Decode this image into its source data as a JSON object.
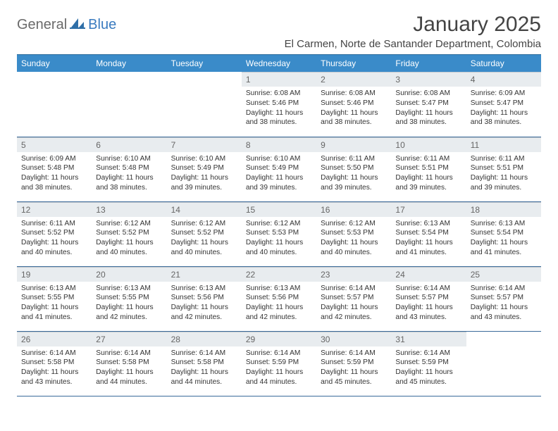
{
  "brand": {
    "part1": "General",
    "part2": "Blue"
  },
  "title": "January 2025",
  "location": "El Carmen, Norte de Santander Department, Colombia",
  "colors": {
    "header_bg": "#3a8bc9",
    "header_text": "#ffffff",
    "daynum_bg": "#e8ecef",
    "daynum_text": "#666666",
    "row_border": "#3a6a9a",
    "body_text": "#333333",
    "logo_gray": "#6a6a6a",
    "logo_blue": "#3a7bbf"
  },
  "day_headers": [
    "Sunday",
    "Monday",
    "Tuesday",
    "Wednesday",
    "Thursday",
    "Friday",
    "Saturday"
  ],
  "weeks": [
    [
      null,
      null,
      null,
      {
        "n": "1",
        "sr": "6:08 AM",
        "ss": "5:46 PM",
        "dl": "11 hours and 38 minutes."
      },
      {
        "n": "2",
        "sr": "6:08 AM",
        "ss": "5:46 PM",
        "dl": "11 hours and 38 minutes."
      },
      {
        "n": "3",
        "sr": "6:08 AM",
        "ss": "5:47 PM",
        "dl": "11 hours and 38 minutes."
      },
      {
        "n": "4",
        "sr": "6:09 AM",
        "ss": "5:47 PM",
        "dl": "11 hours and 38 minutes."
      }
    ],
    [
      {
        "n": "5",
        "sr": "6:09 AM",
        "ss": "5:48 PM",
        "dl": "11 hours and 38 minutes."
      },
      {
        "n": "6",
        "sr": "6:10 AM",
        "ss": "5:48 PM",
        "dl": "11 hours and 38 minutes."
      },
      {
        "n": "7",
        "sr": "6:10 AM",
        "ss": "5:49 PM",
        "dl": "11 hours and 39 minutes."
      },
      {
        "n": "8",
        "sr": "6:10 AM",
        "ss": "5:49 PM",
        "dl": "11 hours and 39 minutes."
      },
      {
        "n": "9",
        "sr": "6:11 AM",
        "ss": "5:50 PM",
        "dl": "11 hours and 39 minutes."
      },
      {
        "n": "10",
        "sr": "6:11 AM",
        "ss": "5:51 PM",
        "dl": "11 hours and 39 minutes."
      },
      {
        "n": "11",
        "sr": "6:11 AM",
        "ss": "5:51 PM",
        "dl": "11 hours and 39 minutes."
      }
    ],
    [
      {
        "n": "12",
        "sr": "6:11 AM",
        "ss": "5:52 PM",
        "dl": "11 hours and 40 minutes."
      },
      {
        "n": "13",
        "sr": "6:12 AM",
        "ss": "5:52 PM",
        "dl": "11 hours and 40 minutes."
      },
      {
        "n": "14",
        "sr": "6:12 AM",
        "ss": "5:52 PM",
        "dl": "11 hours and 40 minutes."
      },
      {
        "n": "15",
        "sr": "6:12 AM",
        "ss": "5:53 PM",
        "dl": "11 hours and 40 minutes."
      },
      {
        "n": "16",
        "sr": "6:12 AM",
        "ss": "5:53 PM",
        "dl": "11 hours and 40 minutes."
      },
      {
        "n": "17",
        "sr": "6:13 AM",
        "ss": "5:54 PM",
        "dl": "11 hours and 41 minutes."
      },
      {
        "n": "18",
        "sr": "6:13 AM",
        "ss": "5:54 PM",
        "dl": "11 hours and 41 minutes."
      }
    ],
    [
      {
        "n": "19",
        "sr": "6:13 AM",
        "ss": "5:55 PM",
        "dl": "11 hours and 41 minutes."
      },
      {
        "n": "20",
        "sr": "6:13 AM",
        "ss": "5:55 PM",
        "dl": "11 hours and 42 minutes."
      },
      {
        "n": "21",
        "sr": "6:13 AM",
        "ss": "5:56 PM",
        "dl": "11 hours and 42 minutes."
      },
      {
        "n": "22",
        "sr": "6:13 AM",
        "ss": "5:56 PM",
        "dl": "11 hours and 42 minutes."
      },
      {
        "n": "23",
        "sr": "6:14 AM",
        "ss": "5:57 PM",
        "dl": "11 hours and 42 minutes."
      },
      {
        "n": "24",
        "sr": "6:14 AM",
        "ss": "5:57 PM",
        "dl": "11 hours and 43 minutes."
      },
      {
        "n": "25",
        "sr": "6:14 AM",
        "ss": "5:57 PM",
        "dl": "11 hours and 43 minutes."
      }
    ],
    [
      {
        "n": "26",
        "sr": "6:14 AM",
        "ss": "5:58 PM",
        "dl": "11 hours and 43 minutes."
      },
      {
        "n": "27",
        "sr": "6:14 AM",
        "ss": "5:58 PM",
        "dl": "11 hours and 44 minutes."
      },
      {
        "n": "28",
        "sr": "6:14 AM",
        "ss": "5:58 PM",
        "dl": "11 hours and 44 minutes."
      },
      {
        "n": "29",
        "sr": "6:14 AM",
        "ss": "5:59 PM",
        "dl": "11 hours and 44 minutes."
      },
      {
        "n": "30",
        "sr": "6:14 AM",
        "ss": "5:59 PM",
        "dl": "11 hours and 45 minutes."
      },
      {
        "n": "31",
        "sr": "6:14 AM",
        "ss": "5:59 PM",
        "dl": "11 hours and 45 minutes."
      },
      null
    ]
  ],
  "labels": {
    "sunrise": "Sunrise:",
    "sunset": "Sunset:",
    "daylight": "Daylight:"
  }
}
